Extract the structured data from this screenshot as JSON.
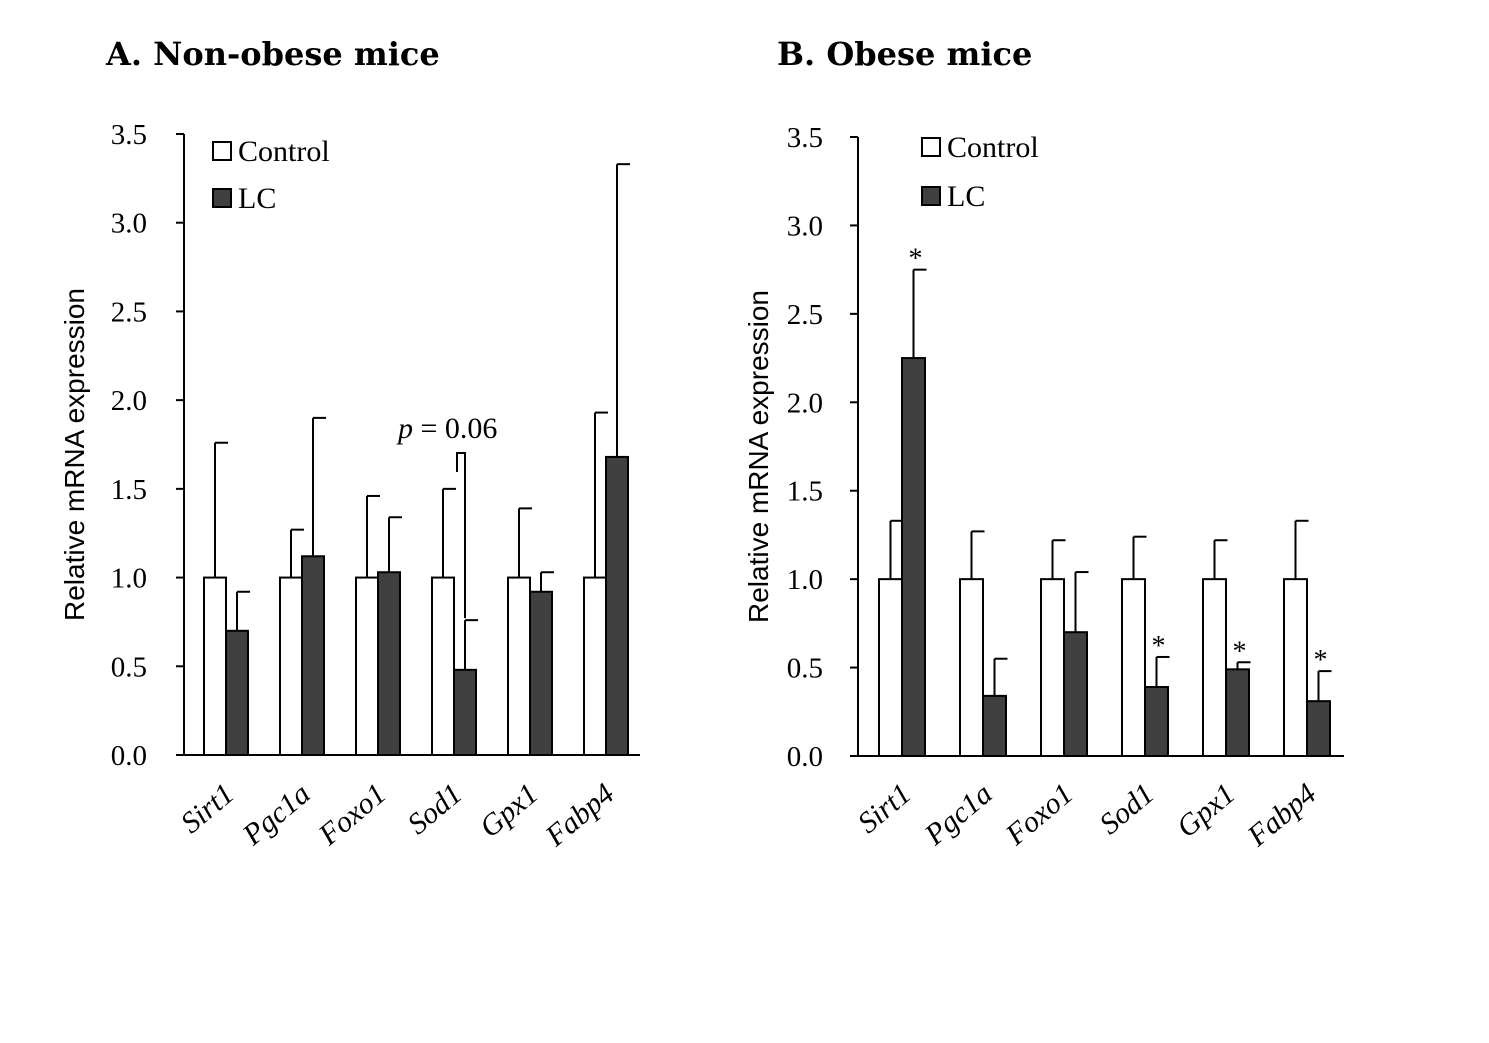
{
  "chart_data": [
    {
      "type": "bar",
      "title": "A. Non-obese mice",
      "xlabel": "",
      "ylabel": "Relative mRNA expression",
      "ylim": [
        0,
        3.5
      ],
      "yticks": [
        "0.0",
        "0.5",
        "1.0",
        "1.5",
        "2.0",
        "2.5",
        "3.0",
        "3.5"
      ],
      "legend_position": "top-left",
      "grid": false,
      "categories": [
        "Sirt1",
        "Pgc1a",
        "Foxo1",
        "Sod1",
        "Gpx1",
        "Fabp4"
      ],
      "series": [
        {
          "name": "Control",
          "color": "#ffffff",
          "values": [
            1.0,
            1.0,
            1.0,
            1.0,
            1.0,
            1.0
          ],
          "errors": [
            0.76,
            0.27,
            0.46,
            0.5,
            0.39,
            0.93
          ],
          "significance": [
            "",
            "",
            "",
            "",
            "",
            ""
          ]
        },
        {
          "name": "LC",
          "color": "#404040",
          "values": [
            0.7,
            1.12,
            1.03,
            0.48,
            0.92,
            1.68
          ],
          "errors": [
            0.22,
            0.78,
            0.31,
            0.28,
            0.11,
            1.65
          ],
          "significance": [
            "",
            "",
            "",
            "",
            "",
            ""
          ]
        }
      ],
      "annotation": {
        "p": "p",
        "text": " = 0.06",
        "category_index": 3
      }
    },
    {
      "type": "bar",
      "title": "B. Obese mice",
      "xlabel": "",
      "ylabel": "Relative mRNA expression",
      "ylim": [
        0,
        3.5
      ],
      "yticks": [
        "0.0",
        "0.5",
        "1.0",
        "1.5",
        "2.0",
        "2.5",
        "3.0",
        "3.5"
      ],
      "legend_position": "top-left",
      "grid": false,
      "categories": [
        "Sirt1",
        "Pgc1a",
        "Foxo1",
        "Sod1",
        "Gpx1",
        "Fabp4"
      ],
      "series": [
        {
          "name": "Control",
          "color": "#ffffff",
          "values": [
            1.0,
            1.0,
            1.0,
            1.0,
            1.0,
            1.0
          ],
          "errors": [
            0.33,
            0.27,
            0.22,
            0.24,
            0.22,
            0.33
          ],
          "significance": [
            "",
            "",
            "",
            "",
            "",
            ""
          ]
        },
        {
          "name": "LC",
          "color": "#404040",
          "values": [
            2.25,
            0.34,
            0.7,
            0.39,
            0.49,
            0.31
          ],
          "errors": [
            0.5,
            0.21,
            0.34,
            0.17,
            0.04,
            0.17
          ],
          "significance": [
            "*",
            "",
            "",
            "*",
            "*",
            "*"
          ]
        }
      ]
    }
  ]
}
